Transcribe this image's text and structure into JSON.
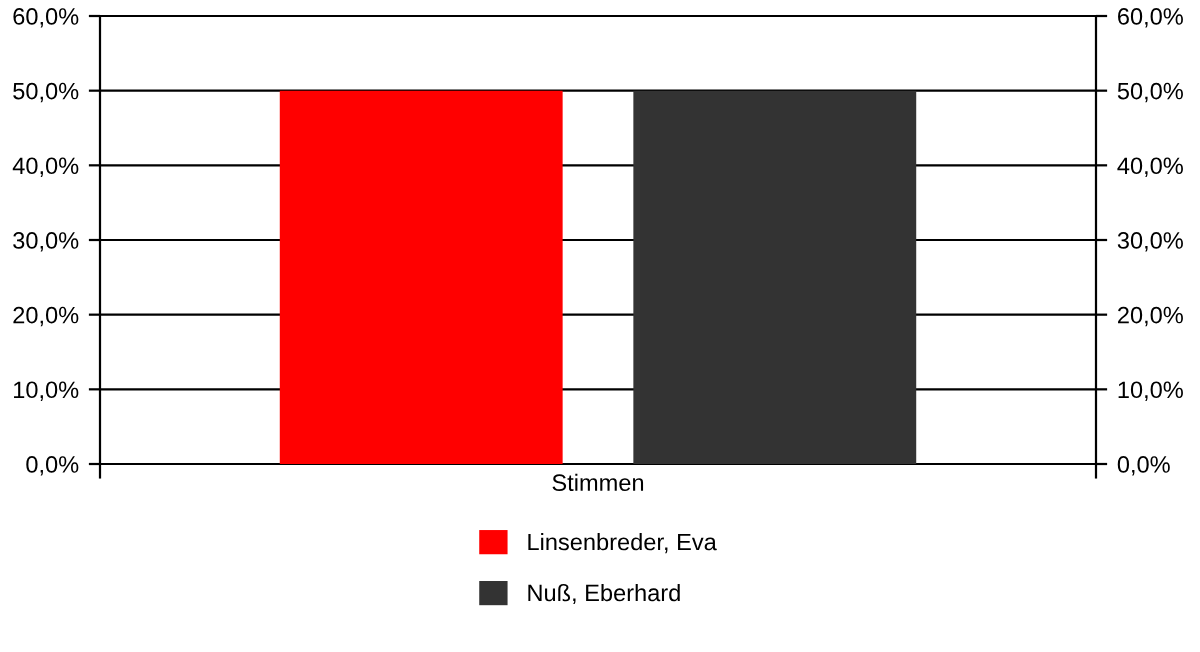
{
  "chart_data": {
    "type": "bar",
    "categories": [
      "Stimmen"
    ],
    "series": [
      {
        "name": "Linsenbreder, Eva",
        "color": "#ff0000",
        "values": [
          50.0
        ]
      },
      {
        "name": "Nuß, Eberhard",
        "color": "#333333",
        "values": [
          50.0
        ]
      }
    ],
    "ylim": [
      0,
      60
    ],
    "yticks": [
      {
        "value": 0,
        "label": "0,0%"
      },
      {
        "value": 10,
        "label": "10,0%"
      },
      {
        "value": 20,
        "label": "20,0%"
      },
      {
        "value": 30,
        "label": "30,0%"
      },
      {
        "value": 40,
        "label": "40,0%"
      },
      {
        "value": 50,
        "label": "50,0%"
      },
      {
        "value": 60,
        "label": "60,0%"
      }
    ],
    "grid": "y",
    "legend": "bottom"
  }
}
